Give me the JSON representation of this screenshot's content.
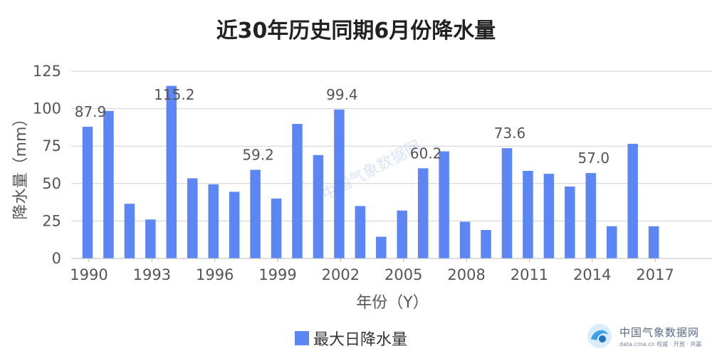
{
  "page": {
    "title": "近30年历史同期6月份降水量"
  },
  "chart_data": {
    "type": "bar",
    "title": "近30年历史同期6月份降水量",
    "xlabel": "年份（Y）",
    "ylabel": "降水量（mm）",
    "ylim": [
      0,
      125
    ],
    "yticks": [
      0,
      25,
      50,
      75,
      100,
      125
    ],
    "grid": true,
    "legend_position": "bottom",
    "bar_color": "#5b86f4",
    "categories": [
      1990,
      1991,
      1992,
      1993,
      1994,
      1995,
      1996,
      1997,
      1998,
      1999,
      2000,
      2001,
      2002,
      2003,
      2004,
      2005,
      2006,
      2007,
      2008,
      2009,
      2010,
      2011,
      2012,
      2013,
      2014,
      2015,
      2016,
      2017
    ],
    "xtick_labels": [
      1990,
      1993,
      1996,
      1999,
      2002,
      2005,
      2008,
      2011,
      2014,
      2017
    ],
    "series": [
      {
        "name": "最大日降水量",
        "values": [
          87.9,
          98.5,
          36.5,
          26.0,
          115.2,
          53.5,
          49.5,
          44.5,
          59.2,
          40.0,
          89.8,
          69.0,
          99.4,
          35.0,
          14.5,
          32.0,
          60.2,
          71.5,
          24.5,
          19.0,
          73.6,
          58.5,
          56.5,
          48.0,
          57.0,
          21.5,
          76.5,
          21.5
        ]
      }
    ],
    "data_labels": [
      {
        "category": 1990,
        "text": "87.9"
      },
      {
        "category": 1994,
        "text": "115.2"
      },
      {
        "category": 1998,
        "text": "59.2"
      },
      {
        "category": 2002,
        "text": "99.4"
      },
      {
        "category": 2006,
        "text": "60.2"
      },
      {
        "category": 2010,
        "text": "73.6"
      },
      {
        "category": 2014,
        "text": "57.0"
      }
    ]
  },
  "legend": {
    "label": "最大日降水量",
    "color": "#5b86f4"
  },
  "watermark": {
    "center_text": "中国气象数据网",
    "name": "中国气象数据网",
    "sub": "data.cma.cn 权威 · 开放 · 共赢"
  }
}
